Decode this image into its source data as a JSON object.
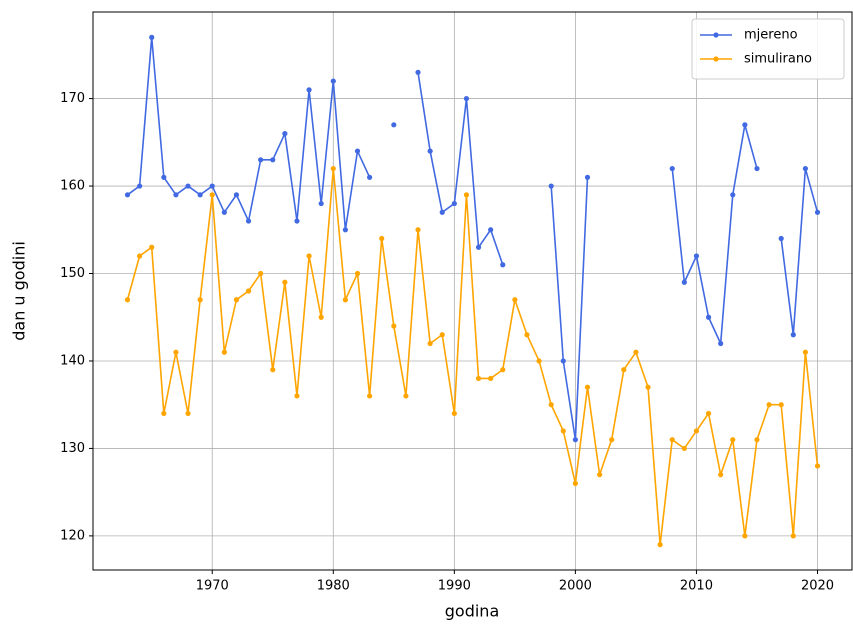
{
  "chart_data": {
    "type": "line",
    "xlabel": "godina",
    "ylabel": "dan u godini",
    "x": [
      1963,
      1964,
      1965,
      1966,
      1967,
      1968,
      1969,
      1970,
      1971,
      1972,
      1973,
      1974,
      1975,
      1976,
      1977,
      1978,
      1979,
      1980,
      1981,
      1982,
      1983,
      1984,
      1985,
      1986,
      1987,
      1988,
      1989,
      1990,
      1991,
      1992,
      1993,
      1994,
      1995,
      1996,
      1997,
      1998,
      1999,
      2000,
      2001,
      2002,
      2003,
      2004,
      2005,
      2006,
      2007,
      2008,
      2009,
      2010,
      2011,
      2012,
      2013,
      2014,
      2015,
      2016,
      2017,
      2018,
      2019,
      2020
    ],
    "series": [
      {
        "name": "mjereno",
        "color": "#4169e1",
        "values": [
          159,
          160,
          177,
          161,
          159,
          160,
          159,
          160,
          157,
          159,
          156,
          163,
          163,
          166,
          156,
          171,
          158,
          172,
          155,
          164,
          161,
          null,
          167,
          null,
          173,
          164,
          157,
          158,
          170,
          153,
          155,
          151,
          null,
          null,
          null,
          160,
          140,
          131,
          161,
          null,
          null,
          null,
          null,
          null,
          null,
          162,
          149,
          152,
          145,
          142,
          159,
          167,
          162,
          null,
          154,
          143,
          162,
          157
        ]
      },
      {
        "name": "simulirano",
        "color": "#ffa500",
        "values": [
          147,
          152,
          153,
          134,
          141,
          134,
          147,
          159,
          141,
          147,
          148,
          150,
          139,
          149,
          136,
          152,
          145,
          162,
          147,
          150,
          136,
          154,
          144,
          136,
          155,
          142,
          143,
          134,
          159,
          138,
          138,
          139,
          147,
          143,
          140,
          135,
          132,
          126,
          137,
          127,
          131,
          139,
          141,
          137,
          119,
          131,
          130,
          132,
          134,
          127,
          131,
          120,
          131,
          135,
          135,
          120,
          141,
          128
        ]
      }
    ],
    "xlim": [
      1960.15,
      2022.85
    ],
    "ylim": [
      116.1,
      179.9
    ],
    "xticks": [
      1970,
      1980,
      1990,
      2000,
      2010,
      2020
    ],
    "yticks": [
      120,
      130,
      140,
      150,
      160,
      170
    ],
    "grid": true,
    "legend": "upper right"
  }
}
